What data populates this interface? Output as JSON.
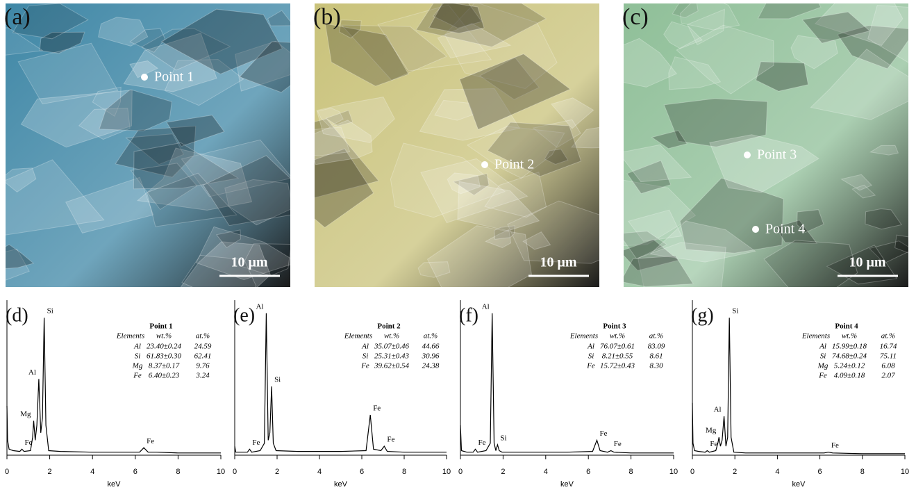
{
  "images": [
    {
      "label": "(a)",
      "points": [
        "Point 1"
      ],
      "scale_bar": "10 μm",
      "color": "#3f87a6"
    },
    {
      "label": "(b)",
      "points": [
        "Point 2"
      ],
      "scale_bar": "10 μm",
      "color": "#c9c27a"
    },
    {
      "label": "(c)",
      "points": [
        "Point 3",
        "Point 4"
      ],
      "scale_bar": "10 μm",
      "color": "#8fbf98"
    }
  ],
  "chart_data": [
    {
      "type": "line",
      "panel_label": "(d)",
      "xlabel": "keV",
      "xlim": [
        0,
        10
      ],
      "xticks": [
        0,
        2,
        4,
        6,
        8,
        10
      ],
      "ylim": [
        0,
        100
      ],
      "color": "#000000",
      "x": [
        0,
        0.03,
        0.1,
        0.3,
        0.6,
        0.7,
        0.8,
        1.1,
        1.2,
        1.25,
        1.32,
        1.4,
        1.49,
        1.58,
        1.66,
        1.74,
        1.82,
        1.95,
        2.5,
        4,
        6.2,
        6.4,
        6.6,
        7,
        8,
        10
      ],
      "values": [
        33,
        10,
        4,
        3,
        2.5,
        4,
        2.5,
        3,
        12,
        23,
        10,
        20,
        51,
        15,
        25,
        92,
        20,
        3,
        2.5,
        2,
        2,
        5,
        2,
        2,
        1.5,
        1.5
      ],
      "annotations": [
        {
          "text": "Si",
          "x": 1.74
        },
        {
          "text": "Al",
          "x": 1.49
        },
        {
          "text": "Mg",
          "x": 1.25
        },
        {
          "text": "Fe",
          "x": 0.7
        },
        {
          "text": "Fe",
          "x": 6.4
        }
      ],
      "table": {
        "title": "Point 1",
        "header": [
          "Elements",
          "wt.%",
          "at.%"
        ],
        "rows": [
          [
            "Al",
            "23.40±0.24",
            "24.59"
          ],
          [
            "Si",
            "61.83±0.30",
            "62.41"
          ],
          [
            "Mg",
            "8.37±0.17",
            "9.76"
          ],
          [
            "Fe",
            "6.40±0.23",
            "3.24"
          ]
        ]
      }
    },
    {
      "type": "line",
      "panel_label": "(e)",
      "xlabel": "keV",
      "xlim": [
        0,
        10
      ],
      "xticks": [
        0,
        2,
        4,
        6,
        8,
        10
      ],
      "ylim": [
        0,
        100
      ],
      "color": "#000000",
      "x": [
        0,
        0.05,
        0.3,
        0.6,
        0.7,
        0.8,
        1.2,
        1.4,
        1.49,
        1.58,
        1.66,
        1.74,
        1.82,
        1.95,
        3,
        5,
        6.2,
        6.4,
        6.55,
        6.9,
        7.06,
        7.2,
        8,
        10
      ],
      "values": [
        6,
        2,
        2,
        2,
        4,
        2,
        3,
        8,
        95,
        10,
        15,
        46,
        8,
        3,
        2.5,
        2.5,
        3,
        27,
        4,
        3,
        6,
        2.5,
        2,
        2
      ],
      "annotations": [
        {
          "text": "Al",
          "x": 1.49
        },
        {
          "text": "Si",
          "x": 1.74
        },
        {
          "text": "Fe",
          "x": 0.7
        },
        {
          "text": "Fe",
          "x": 6.4
        },
        {
          "text": "Fe",
          "x": 7.06
        }
      ],
      "table": {
        "title": "Point 2",
        "header": [
          "Elements",
          "wt.%",
          "at.%"
        ],
        "rows": [
          [
            "Al",
            "35.07±0.46",
            "44.66"
          ],
          [
            "Si",
            "25.31±0.43",
            "30.96"
          ],
          [
            "Fe",
            "39.62±0.54",
            "24.38"
          ]
        ]
      }
    },
    {
      "type": "line",
      "panel_label": "(f)",
      "xlabel": "keV",
      "xlim": [
        0,
        10
      ],
      "xticks": [
        0,
        2,
        4,
        6,
        8,
        10
      ],
      "ylim": [
        0,
        100
      ],
      "color": "#000000",
      "x": [
        0,
        0.05,
        0.3,
        0.6,
        0.7,
        0.8,
        1.2,
        1.4,
        1.49,
        1.58,
        1.66,
        1.74,
        1.82,
        1.95,
        3,
        5,
        6.2,
        6.4,
        6.55,
        6.9,
        7.06,
        7.2,
        8,
        10
      ],
      "values": [
        20,
        3,
        2,
        2,
        4,
        2,
        3,
        8,
        95,
        8,
        3,
        7,
        3,
        2,
        2,
        2,
        2.5,
        10,
        3,
        2,
        3,
        2,
        1.5,
        1.5
      ],
      "annotations": [
        {
          "text": "Al",
          "x": 1.49
        },
        {
          "text": "Si",
          "x": 1.74
        },
        {
          "text": "Fe",
          "x": 0.7
        },
        {
          "text": "Fe",
          "x": 6.4
        },
        {
          "text": "Fe",
          "x": 7.06
        }
      ],
      "table": {
        "title": "Point 3",
        "header": [
          "Elements",
          "wt.%",
          "at.%"
        ],
        "rows": [
          [
            "Al",
            "76.07±0.61",
            "83.09"
          ],
          [
            "Si",
            "8.21±0.55",
            "8.61"
          ],
          [
            "Fe",
            "15.72±0.43",
            "8.30"
          ]
        ]
      }
    },
    {
      "type": "line",
      "panel_label": "(g)",
      "xlabel": "keV",
      "xlim": [
        0,
        10
      ],
      "xticks": [
        0,
        2,
        4,
        6,
        8,
        10
      ],
      "ylim": [
        0,
        100
      ],
      "color": "#000000",
      "x": [
        0,
        0.03,
        0.1,
        0.3,
        0.6,
        0.7,
        0.8,
        1.1,
        1.2,
        1.25,
        1.32,
        1.4,
        1.49,
        1.58,
        1.66,
        1.74,
        1.82,
        1.95,
        2.5,
        4,
        6.2,
        6.4,
        6.6,
        8,
        10
      ],
      "values": [
        35,
        8,
        3,
        2.5,
        2,
        3,
        2,
        3,
        8,
        12,
        6,
        10,
        26,
        6,
        12,
        92,
        12,
        2,
        1.5,
        1.5,
        1.5,
        2,
        1.5,
        1,
        1
      ],
      "annotations": [
        {
          "text": "Si",
          "x": 1.74
        },
        {
          "text": "Al",
          "x": 1.49
        },
        {
          "text": "Mg",
          "x": 1.25
        },
        {
          "text": "Fe",
          "x": 0.7
        },
        {
          "text": "Fe",
          "x": 6.4
        }
      ],
      "table": {
        "title": "Point 4",
        "header": [
          "Elements",
          "wt.%",
          "at.%"
        ],
        "rows": [
          [
            "Al",
            "15.99±0.18",
            "16.74"
          ],
          [
            "Si",
            "74.68±0.24",
            "75.11"
          ],
          [
            "Mg",
            "5.24±0.12",
            "6.08"
          ],
          [
            "Fe",
            "4.09±0.18",
            "2.07"
          ]
        ]
      }
    }
  ]
}
